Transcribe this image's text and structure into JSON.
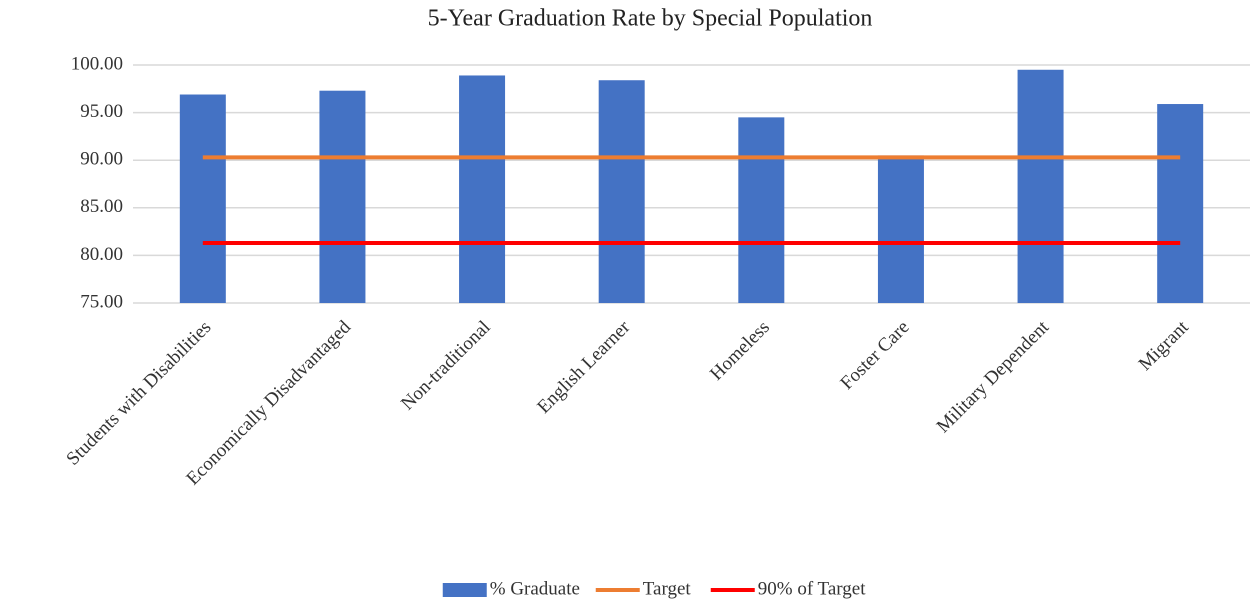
{
  "chart_data": {
    "type": "bar",
    "title": "5-Year Graduation Rate by Special Population",
    "categories": [
      "Students with Disabilities",
      "Economically Disadvantaged",
      "Non-traditional",
      "English Learner",
      "Homeless",
      "Foster Care",
      "Military Dependent",
      "Migrant"
    ],
    "series": [
      {
        "name": "% Graduate",
        "type": "bar",
        "color": "#4472c4",
        "values": [
          96.9,
          97.3,
          98.9,
          98.4,
          94.5,
          90.5,
          99.5,
          95.9
        ]
      },
      {
        "name": "Target",
        "type": "line",
        "color": "#ed7d31",
        "values": [
          90.3,
          90.3,
          90.3,
          90.3,
          90.3,
          90.3,
          90.3,
          90.3
        ]
      },
      {
        "name": "90% of Target",
        "type": "line",
        "color": "#ff0000",
        "values": [
          81.3,
          81.3,
          81.3,
          81.3,
          81.3,
          81.3,
          81.3,
          81.3
        ]
      }
    ],
    "ylim": [
      75,
      100
    ],
    "yticks": [
      {
        "value": 75,
        "label": "75.00"
      },
      {
        "value": 80,
        "label": "80.00"
      },
      {
        "value": 85,
        "label": "85.00"
      },
      {
        "value": 90,
        "label": "90.00"
      },
      {
        "value": 95,
        "label": "95.00"
      },
      {
        "value": 100,
        "label": "100.00"
      }
    ],
    "grid": true,
    "legend": "bottom"
  }
}
